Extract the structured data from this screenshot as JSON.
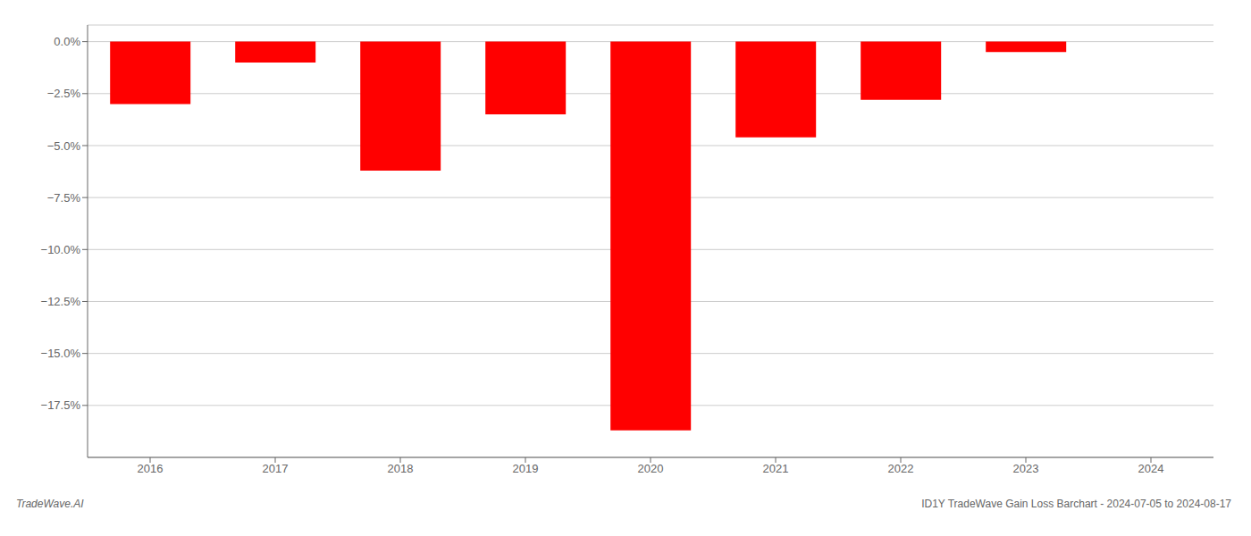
{
  "chart_data": {
    "type": "bar",
    "categories": [
      "2016",
      "2017",
      "2018",
      "2019",
      "2020",
      "2021",
      "2022",
      "2023",
      "2024"
    ],
    "values": [
      -3.0,
      -1.0,
      -6.2,
      -3.5,
      -18.7,
      -4.6,
      -2.8,
      -0.5,
      0.0
    ],
    "color": "#ff0000",
    "ylim": [
      -20.0,
      0.8
    ],
    "yticks": [
      {
        "value": 0.0,
        "label": "0.0%"
      },
      {
        "value": -2.5,
        "label": "−2.5%"
      },
      {
        "value": -5.0,
        "label": "−5.0%"
      },
      {
        "value": -7.5,
        "label": "−7.5%"
      },
      {
        "value": -10.0,
        "label": "−10.0%"
      },
      {
        "value": -12.5,
        "label": "−12.5%"
      },
      {
        "value": -15.0,
        "label": "−15.0%"
      },
      {
        "value": -17.5,
        "label": "−17.5%"
      }
    ],
    "grid": true,
    "annotations": [
      "TradeWave.AI",
      "ID1Y TradeWave Gain Loss Barchart - 2024-07-05 to 2024-08-17"
    ]
  }
}
